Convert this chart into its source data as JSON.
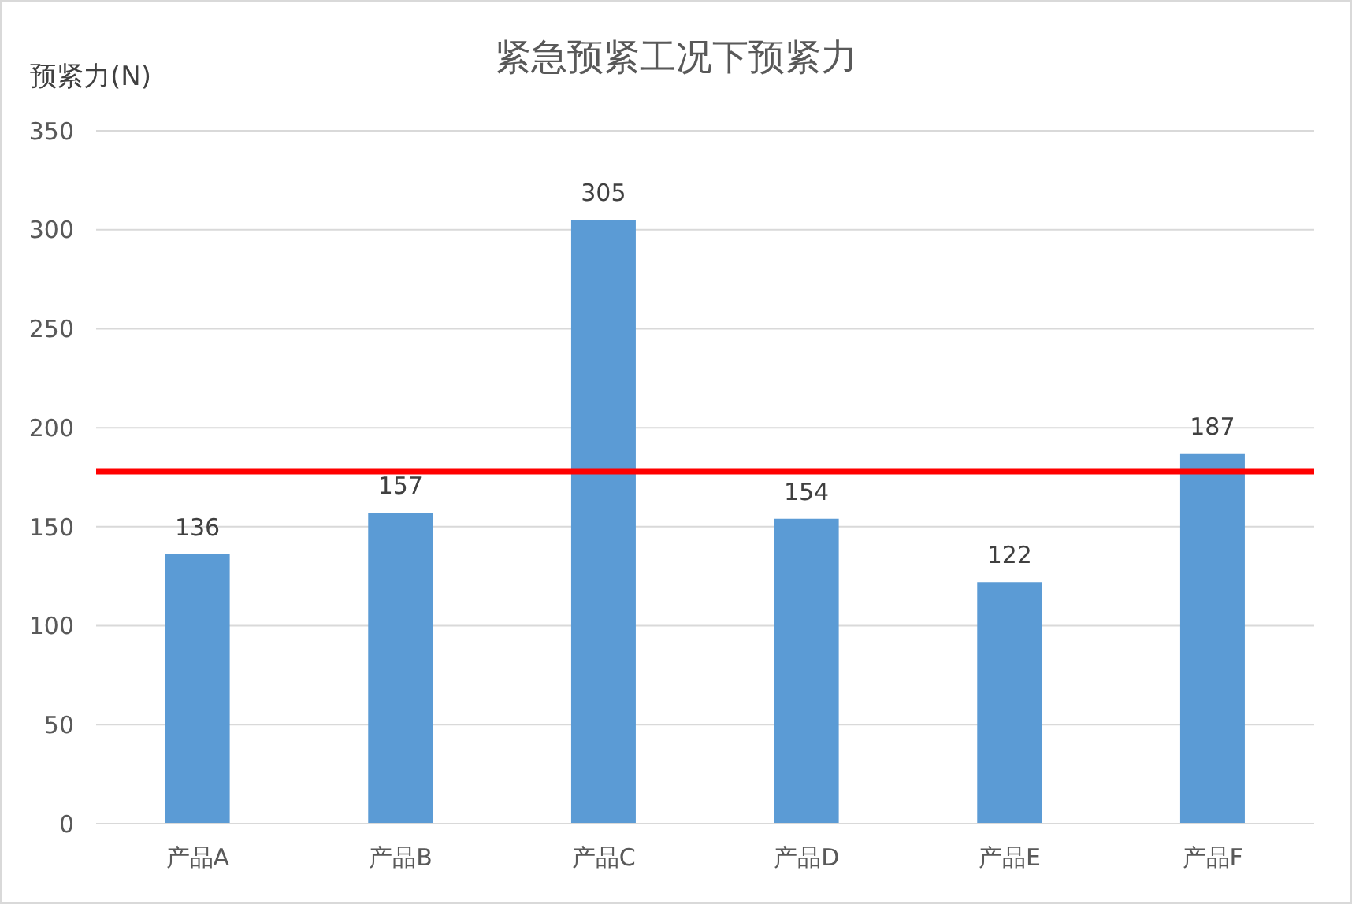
{
  "chart_data": {
    "type": "bar",
    "title": "紧急预紧工况下预紧力",
    "ylabel": "预紧力(N)",
    "categories": [
      "产品A",
      "产品B",
      "产品C",
      "产品D",
      "产品E",
      "产品F"
    ],
    "series": [
      {
        "color": "#5b9bd5",
        "values": [
          136,
          157,
          305,
          154,
          122,
          187
        ]
      }
    ],
    "ylim": [
      0,
      350
    ],
    "yticks": [
      0,
      50,
      100,
      150,
      200,
      250,
      300,
      350
    ],
    "grid": "y",
    "data_labels": true,
    "ref_lines": [
      {
        "axis": "y",
        "value": 178,
        "color": "#ff0000"
      }
    ]
  }
}
